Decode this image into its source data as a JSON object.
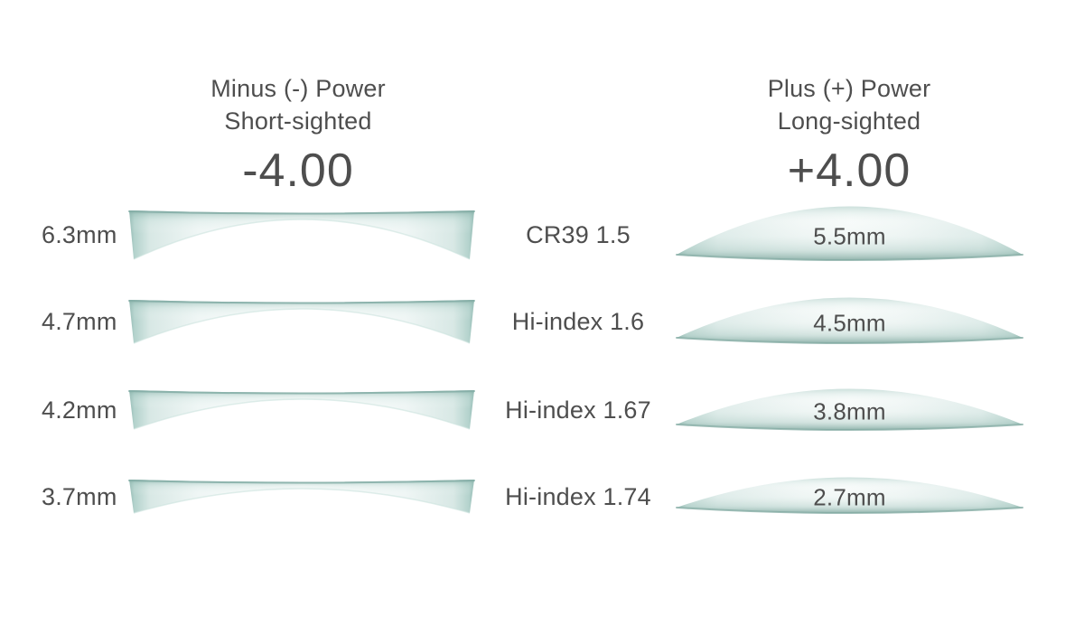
{
  "left_column": {
    "title_line1": "Minus (-) Power",
    "title_line2": "Short-sighted",
    "power": "-4.00"
  },
  "right_column": {
    "title_line1": "Plus (+) Power",
    "title_line2": "Long-sighted",
    "power": "+4.00"
  },
  "rows": [
    {
      "material": "CR39 1.5",
      "minus_edge_thickness": "6.3mm",
      "plus_center_thickness": "5.5mm"
    },
    {
      "material": "Hi-index 1.6",
      "minus_edge_thickness": "4.7mm",
      "plus_center_thickness": "4.5mm"
    },
    {
      "material": "Hi-index 1.67",
      "minus_edge_thickness": "4.2mm",
      "plus_center_thickness": "3.8mm"
    },
    {
      "material": "Hi-index 1.74",
      "minus_edge_thickness": "3.7mm",
      "plus_center_thickness": "2.7mm"
    }
  ],
  "colors": {
    "lens_edge_teal": "#8db6af",
    "lens_mid_teal": "#cfe3e0",
    "lens_light": "#eef5f4",
    "text": "#4e4e4e",
    "background": "#ffffff"
  }
}
